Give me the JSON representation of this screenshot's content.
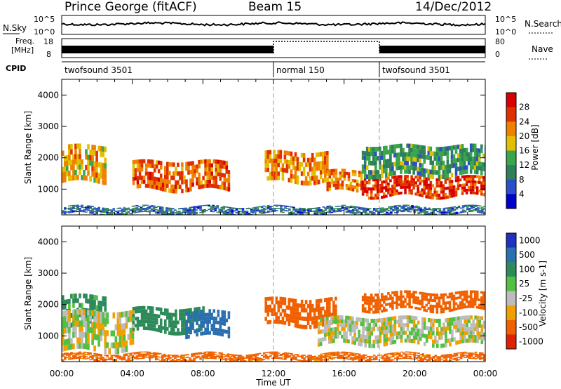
{
  "header": {
    "station": "Prince George (fitACF)",
    "beam": "Beam 15",
    "date": "14/Dec/2012"
  },
  "noise_panel": {
    "left_label": "N.Sky",
    "left_ticks": [
      "10^5",
      "10^0"
    ],
    "right_ticks": [
      "10^5",
      "10^0"
    ],
    "right_label": "N.Search"
  },
  "freq_panel": {
    "left_label_line1": "Freq.",
    "left_label_line2": "[MHz]",
    "left_ticks": [
      "18",
      "8"
    ],
    "right_ticks": [
      "80",
      "0"
    ],
    "right_label": "Nave"
  },
  "cpid_panel": {
    "label": "CPID",
    "segments": [
      {
        "name": "twofsound 3501",
        "start": 0,
        "end": 12
      },
      {
        "name": "normal 150",
        "start": 12,
        "end": 18
      },
      {
        "name": "twofsound 3501",
        "start": 18,
        "end": 24
      }
    ]
  },
  "colors": {
    "power_scale": [
      "#0000cc",
      "#2a4fc9",
      "#2f7f5a",
      "#3aa54a",
      "#e0c000",
      "#f08000",
      "#e03000",
      "#d80000"
    ],
    "velocity_scale": [
      "#2030c0",
      "#2a6fb0",
      "#2d8a5a",
      "#52c040",
      "#bcbcbc",
      "#f0a000",
      "#f06000",
      "#e02000"
    ]
  },
  "chart_data": [
    {
      "type": "heatmap",
      "parameter": "Power",
      "ylabel": "Slant Range [km]",
      "ylim": [
        180,
        4500
      ],
      "yticks": [
        1000,
        2000,
        3000,
        4000
      ],
      "xlim": [
        0,
        24
      ],
      "colorbar_label": "Power [dB]",
      "colorbar_ticks": [
        "4",
        "8",
        "12",
        "16",
        "20",
        "24",
        "28"
      ],
      "colorbar_range": [
        0,
        32
      ],
      "echo_bands": [
        {
          "t_start": 0.0,
          "t_end": 2.5,
          "r_low": 1200,
          "r_high": 2400,
          "value": 20
        },
        {
          "t_start": 4.0,
          "t_end": 9.5,
          "r_low": 950,
          "r_high": 1900,
          "value": 24
        },
        {
          "t_start": 11.5,
          "t_end": 15.0,
          "r_low": 1200,
          "r_high": 2200,
          "value": 22
        },
        {
          "t_start": 15.0,
          "t_end": 17.0,
          "r_low": 900,
          "r_high": 1600,
          "value": 22
        },
        {
          "t_start": 17.0,
          "t_end": 24.0,
          "r_low": 750,
          "r_high": 1400,
          "value": 27
        },
        {
          "t_start": 17.0,
          "t_end": 24.0,
          "r_low": 1400,
          "r_high": 2400,
          "value": 12
        },
        {
          "t_start": 0.0,
          "t_end": 24.0,
          "r_low": 180,
          "r_high": 450,
          "value": 8
        }
      ]
    },
    {
      "type": "heatmap",
      "parameter": "Velocity",
      "ylabel": "Slant Range [km]",
      "ylim": [
        180,
        4500
      ],
      "yticks": [
        1000,
        2000,
        3000,
        4000
      ],
      "xlim": [
        0,
        24
      ],
      "xlabel": "Time UT",
      "xticks": [
        "00:00",
        "04:00",
        "08:00",
        "12:00",
        "16:00",
        "20:00",
        "00:00"
      ],
      "colorbar_label": "Velocity [m s-1]",
      "colorbar_ticks": [
        "1000",
        "500",
        "100",
        "25",
        "-25",
        "-100",
        "-500",
        "-1000"
      ],
      "echo_bands": [
        {
          "t_start": 0.0,
          "t_end": 2.5,
          "r_low": 1200,
          "r_high": 2300,
          "value": 100
        },
        {
          "t_start": 0.0,
          "t_end": 4.0,
          "r_low": 500,
          "r_high": 1800,
          "value": 0
        },
        {
          "t_start": 4.0,
          "t_end": 8.0,
          "r_low": 1100,
          "r_high": 1900,
          "value": 150
        },
        {
          "t_start": 7.0,
          "t_end": 9.5,
          "r_low": 950,
          "r_high": 1800,
          "value": 500
        },
        {
          "t_start": 11.5,
          "t_end": 15.5,
          "r_low": 1300,
          "r_high": 2200,
          "value": -300
        },
        {
          "t_start": 14.5,
          "t_end": 24.0,
          "r_low": 700,
          "r_high": 1600,
          "value": 0
        },
        {
          "t_start": 17.0,
          "t_end": 24.0,
          "r_low": 1800,
          "r_high": 2400,
          "value": -200
        },
        {
          "t_start": 0.0,
          "t_end": 24.0,
          "r_low": 180,
          "r_high": 450,
          "value": -150
        }
      ]
    }
  ]
}
